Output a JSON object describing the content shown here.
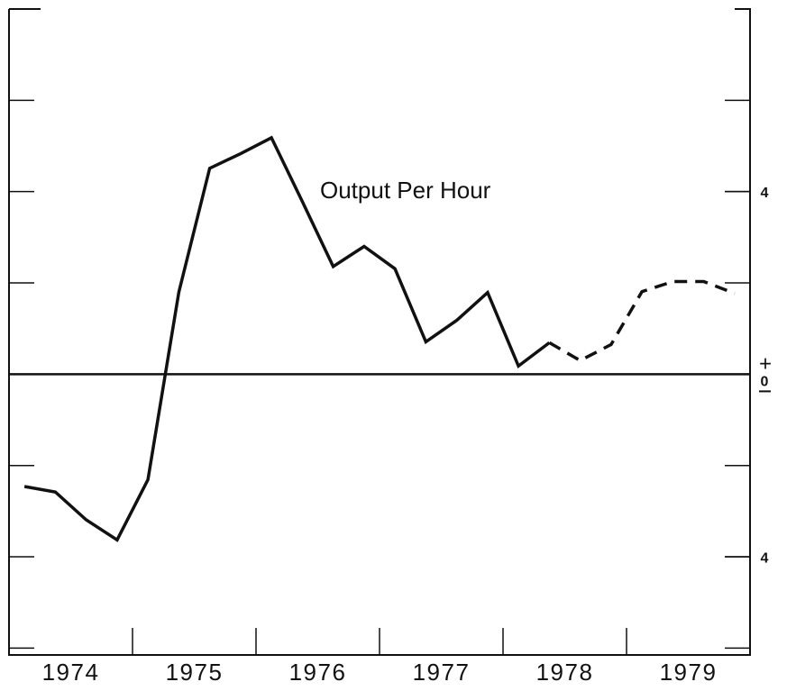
{
  "chart_data": {
    "type": "line",
    "annotation": "Output Per Hour",
    "x": [
      1974.125,
      1974.375,
      1974.625,
      1974.875,
      1975.125,
      1975.375,
      1975.625,
      1975.875,
      1976.125,
      1976.375,
      1976.625,
      1976.875,
      1977.125,
      1977.375,
      1977.625,
      1977.875,
      1978.125,
      1978.375,
      1978.625,
      1978.875,
      1979.125,
      1979.375,
      1979.625,
      1979.875
    ],
    "series": [
      {
        "color": "#111111",
        "style": "solid",
        "values": [
          -2.46,
          -2.58,
          -3.19,
          -3.63,
          -2.31,
          1.8,
          4.51,
          4.83,
          5.18,
          3.78,
          2.36,
          2.8,
          2.31,
          0.71,
          1.18,
          1.79,
          0.18,
          0.69,
          null,
          null,
          null,
          null,
          null,
          null
        ]
      },
      {
        "color": "#111111",
        "style": "dashed",
        "values": [
          null,
          null,
          null,
          null,
          null,
          null,
          null,
          null,
          null,
          null,
          null,
          null,
          null,
          null,
          null,
          null,
          null,
          0.69,
          0.3,
          0.65,
          1.81,
          2.03,
          2.03,
          1.77
        ]
      }
    ],
    "xlim": [
      1974,
      1980
    ],
    "xticks": [
      1975,
      1976,
      1977,
      1978,
      1979
    ],
    "xlabels": [
      1974,
      1975,
      1976,
      1977,
      1978,
      1979
    ],
    "ylim": [
      -6.15,
      8
    ],
    "yticks": [
      4,
      0,
      {
        "value": -4,
        "label": "4"
      }
    ],
    "minor_yticks": [
      6,
      4,
      2,
      -2,
      -4,
      -6
    ],
    "zero_sign": "+"
  }
}
